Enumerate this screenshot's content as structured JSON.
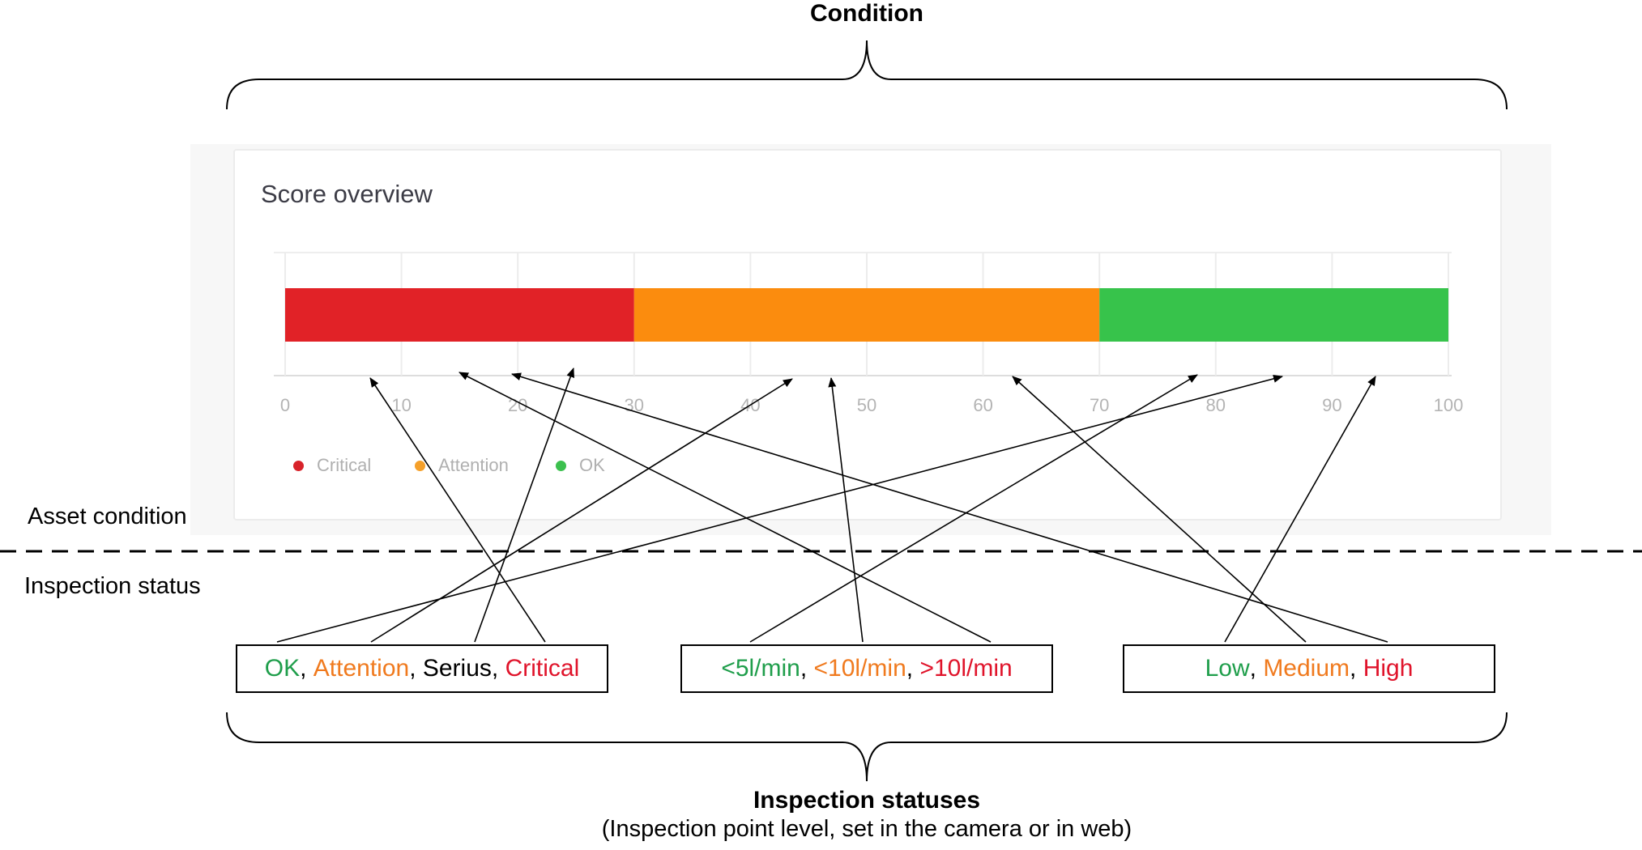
{
  "top_title": "Condition",
  "bottom_title": "Inspection statuses",
  "bottom_subtitle": "(Inspection point level, set in the camera or in web)",
  "asset_condition_label": "Asset condition",
  "inspection_status_label": "Inspection status",
  "card": {
    "title": "Score overview",
    "ticks": [
      "0",
      "10",
      "20",
      "30",
      "40",
      "50",
      "60",
      "70",
      "80",
      "90",
      "100"
    ],
    "segments": [
      {
        "name": "Critical",
        "start": 0,
        "end": 30,
        "color": "#e12227"
      },
      {
        "name": "Attention",
        "start": 30,
        "end": 70,
        "color": "#fb8c0e"
      },
      {
        "name": "OK",
        "start": 70,
        "end": 100,
        "color": "#37c34b"
      }
    ],
    "legend": [
      {
        "label": "Critical",
        "color": "#d8232a"
      },
      {
        "label": "Attention",
        "color": "#f5a02a"
      },
      {
        "label": "OK",
        "color": "#3cc04e"
      }
    ]
  },
  "boxes": [
    {
      "parts": [
        {
          "text": "OK",
          "color": "green"
        },
        {
          "text": ", ",
          "color": "black"
        },
        {
          "text": "Attention",
          "color": "orange"
        },
        {
          "text": ", ",
          "color": "black"
        },
        {
          "text": "Serius",
          "color": "black"
        },
        {
          "text": ", ",
          "color": "black"
        },
        {
          "text": "Critical",
          "color": "red"
        }
      ]
    },
    {
      "parts": [
        {
          "text": "<5l/min",
          "color": "green"
        },
        {
          "text": ", ",
          "color": "black"
        },
        {
          "text": "<10l/min",
          "color": "orange"
        },
        {
          "text": ", ",
          "color": "black"
        },
        {
          "text": ">10l/min",
          "color": "red"
        }
      ]
    },
    {
      "parts": [
        {
          "text": "Low",
          "color": "green"
        },
        {
          "text": ", ",
          "color": "black"
        },
        {
          "text": "Medium",
          "color": "orange"
        },
        {
          "text": ", ",
          "color": "black"
        },
        {
          "text": "High",
          "color": "red"
        }
      ]
    }
  ]
}
